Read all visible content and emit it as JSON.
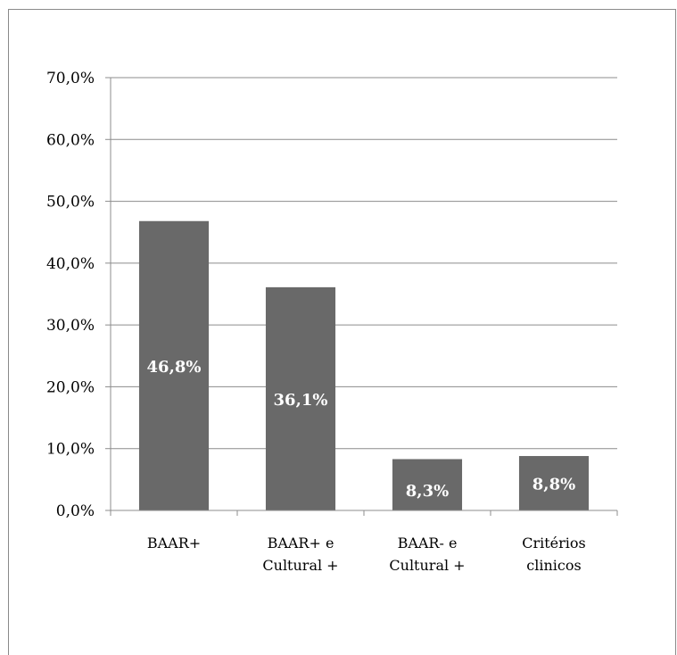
{
  "chart_data": {
    "type": "bar",
    "categories": [
      [
        "BAAR+"
      ],
      [
        "BAAR+ e",
        "Cultural +"
      ],
      [
        "BAAR- e",
        "Cultural +"
      ],
      [
        "Critérios",
        "clinicos"
      ]
    ],
    "values": [
      46.8,
      36.1,
      8.3,
      8.8
    ],
    "data_labels": [
      "46,8%",
      "36,1%",
      "8,3%",
      "8,8%"
    ],
    "y_ticks": [
      0,
      10,
      20,
      30,
      40,
      50,
      60,
      70
    ],
    "y_tick_labels": [
      "0,0%",
      "10,0%",
      "20,0%",
      "30,0%",
      "40,0%",
      "50,0%",
      "60,0%",
      "70,0%"
    ],
    "ylim": [
      0,
      70
    ],
    "grid": true,
    "legend": "none",
    "bar_color": "#696969",
    "grid_color": "#8c8c8c"
  }
}
